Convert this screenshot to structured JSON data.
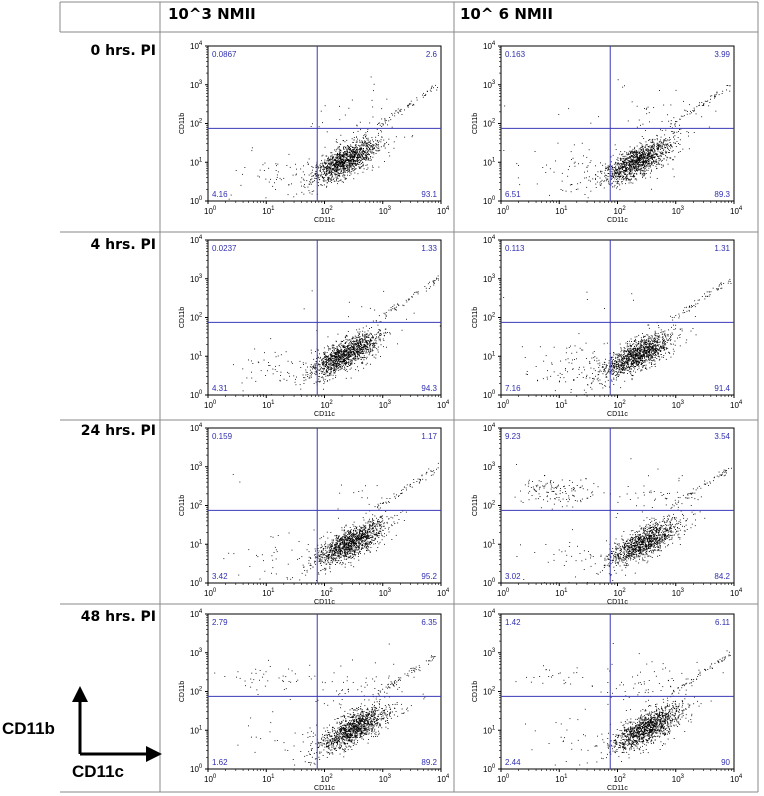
{
  "columns": [
    "10^3 NMII",
    "10^ 6 NMII"
  ],
  "rows": [
    "0 hrs. PI",
    "4 hrs. PI",
    "24 hrs. PI",
    "48 hrs. PI"
  ],
  "legend": {
    "y_label": "CD11b",
    "x_label": "CD11c"
  },
  "colors": {
    "gate": "#3a3ab8",
    "quadrant_text": "#2f2fb0",
    "dots": "#000000",
    "border": "#888888"
  },
  "chart_data": [
    {
      "type": "scatter",
      "row": "0 hrs. PI",
      "column": "10^3 NMII",
      "xlabel": "CD11c",
      "ylabel": "CD11b",
      "xscale": "log",
      "yscale": "log",
      "xlim": [
        1,
        10000
      ],
      "ylim": [
        1,
        10000
      ],
      "x_ticks": [
        "10^0",
        "10^1",
        "10^2",
        "10^3",
        "10^4"
      ],
      "y_ticks": [
        "10^0",
        "10^1",
        "10^2",
        "10^3",
        "10^4"
      ],
      "gate": [
        75,
        75
      ],
      "quadrants": {
        "upper_left": "0.0867",
        "upper_right": "2.6",
        "lower_left": "4.16",
        "lower_right": "93.1"
      }
    },
    {
      "type": "scatter",
      "row": "0 hrs. PI",
      "column": "10^ 6 NMII",
      "xlabel": "CD11c",
      "ylabel": "CD11b",
      "xscale": "log",
      "yscale": "log",
      "xlim": [
        1,
        10000
      ],
      "ylim": [
        1,
        10000
      ],
      "x_ticks": [
        "10^0",
        "10^1",
        "10^2",
        "10^3",
        "10^4"
      ],
      "y_ticks": [
        "10^0",
        "10^1",
        "10^2",
        "10^3",
        "10^4"
      ],
      "gate": [
        75,
        75
      ],
      "quadrants": {
        "upper_left": "0.163",
        "upper_right": "3.99",
        "lower_left": "6.51",
        "lower_right": "89.3"
      }
    },
    {
      "type": "scatter",
      "row": "4 hrs. PI",
      "column": "10^3 NMII",
      "xlabel": "CD11c",
      "ylabel": "CD11b",
      "xscale": "log",
      "yscale": "log",
      "xlim": [
        1,
        10000
      ],
      "ylim": [
        1,
        10000
      ],
      "x_ticks": [
        "10^0",
        "10^1",
        "10^2",
        "10^3",
        "10^4"
      ],
      "y_ticks": [
        "10^0",
        "10^1",
        "10^2",
        "10^3",
        "10^4"
      ],
      "gate": [
        75,
        75
      ],
      "quadrants": {
        "upper_left": "0.0237",
        "upper_right": "1.33",
        "lower_left": "4.31",
        "lower_right": "94.3"
      }
    },
    {
      "type": "scatter",
      "row": "4 hrs. PI",
      "column": "10^ 6 NMII",
      "xlabel": "CD11c",
      "ylabel": "CD11b",
      "xscale": "log",
      "yscale": "log",
      "xlim": [
        1,
        10000
      ],
      "ylim": [
        1,
        10000
      ],
      "x_ticks": [
        "10^0",
        "10^1",
        "10^2",
        "10^3",
        "10^4"
      ],
      "y_ticks": [
        "10^0",
        "10^1",
        "10^2",
        "10^3",
        "10^4"
      ],
      "gate": [
        75,
        75
      ],
      "quadrants": {
        "upper_left": "0.113",
        "upper_right": "1.31",
        "lower_left": "7.16",
        "lower_right": "91.4"
      }
    },
    {
      "type": "scatter",
      "row": "24 hrs. PI",
      "column": "10^3 NMII",
      "xlabel": "CD11c",
      "ylabel": "CD11b",
      "xscale": "log",
      "yscale": "log",
      "xlim": [
        1,
        10000
      ],
      "ylim": [
        1,
        10000
      ],
      "x_ticks": [
        "10^0",
        "10^1",
        "10^2",
        "10^3",
        "10^4"
      ],
      "y_ticks": [
        "10^0",
        "10^1",
        "10^2",
        "10^3",
        "10^4"
      ],
      "gate": [
        75,
        75
      ],
      "quadrants": {
        "upper_left": "0.159",
        "upper_right": "1.17",
        "lower_left": "3.42",
        "lower_right": "95.2"
      }
    },
    {
      "type": "scatter",
      "row": "24 hrs. PI",
      "column": "10^ 6 NMII",
      "xlabel": "CD11c",
      "ylabel": "CD11b",
      "xscale": "log",
      "yscale": "log",
      "xlim": [
        1,
        10000
      ],
      "ylim": [
        1,
        10000
      ],
      "x_ticks": [
        "10^0",
        "10^1",
        "10^2",
        "10^3",
        "10^4"
      ],
      "y_ticks": [
        "10^0",
        "10^1",
        "10^2",
        "10^3",
        "10^4"
      ],
      "gate": [
        75,
        75
      ],
      "quadrants": {
        "upper_left": "9.23",
        "upper_right": "3.54",
        "lower_left": "3.02",
        "lower_right": "84.2"
      }
    },
    {
      "type": "scatter",
      "row": "48 hrs. PI",
      "column": "10^3 NMII",
      "xlabel": "CD11c",
      "ylabel": "CD11b",
      "xscale": "log",
      "yscale": "log",
      "xlim": [
        1,
        10000
      ],
      "ylim": [
        1,
        10000
      ],
      "x_ticks": [
        "10^0",
        "10^1",
        "10^2",
        "10^3",
        "10^4"
      ],
      "y_ticks": [
        "10^0",
        "10^1",
        "10^2",
        "10^3",
        "10^4"
      ],
      "gate": [
        75,
        75
      ],
      "quadrants": {
        "upper_left": "2.79",
        "upper_right": "6.35",
        "lower_left": "1.62",
        "lower_right": "89.2"
      }
    },
    {
      "type": "scatter",
      "row": "48 hrs. PI",
      "column": "10^ 6 NMII",
      "xlabel": "CD11c",
      "ylabel": "CD11b",
      "xscale": "log",
      "yscale": "log",
      "xlim": [
        1,
        10000
      ],
      "ylim": [
        1,
        10000
      ],
      "x_ticks": [
        "10^0",
        "10^1",
        "10^2",
        "10^3",
        "10^4"
      ],
      "y_ticks": [
        "10^0",
        "10^1",
        "10^2",
        "10^3",
        "10^4"
      ],
      "gate": [
        75,
        75
      ],
      "quadrants": {
        "upper_left": "1.42",
        "upper_right": "6.11",
        "lower_left": "2.44",
        "lower_right": "90"
      }
    }
  ]
}
